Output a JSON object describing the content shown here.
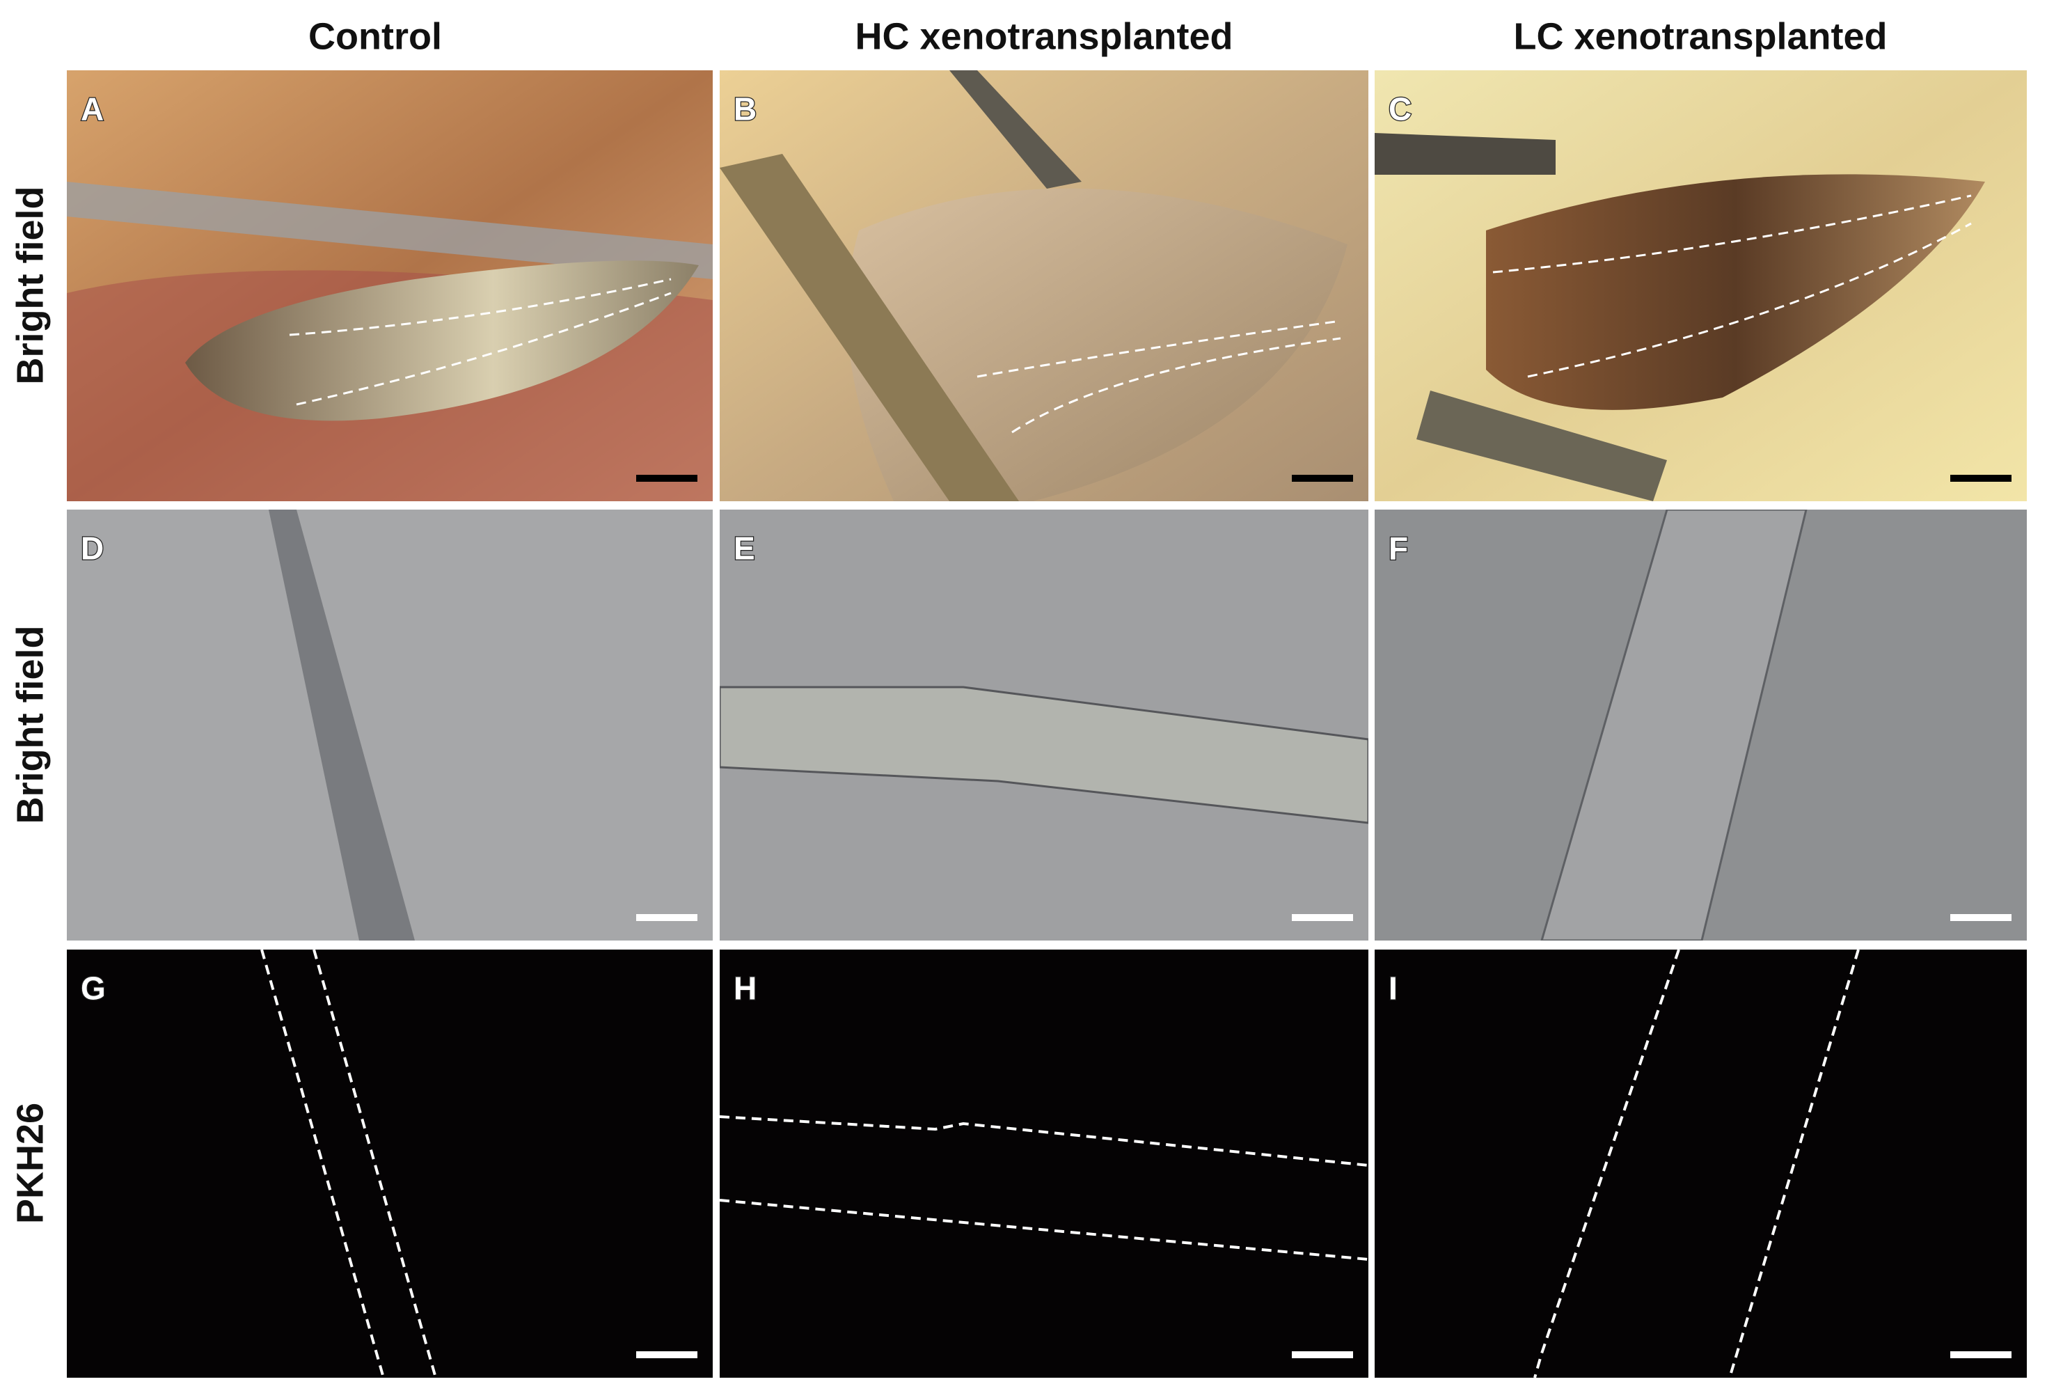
{
  "column_headers": [
    "Control",
    "HC xenotransplanted",
    "LC xenotransplanted"
  ],
  "row_labels": [
    "Bright field",
    "Bright field",
    "PKH26"
  ],
  "panels": [
    [
      {
        "label": "A"
      },
      {
        "label": "B"
      },
      {
        "label": "C"
      }
    ],
    [
      {
        "label": "D"
      },
      {
        "label": "E"
      },
      {
        "label": "F"
      }
    ],
    [
      {
        "label": "G"
      },
      {
        "label": "H"
      },
      {
        "label": "I"
      }
    ]
  ]
}
